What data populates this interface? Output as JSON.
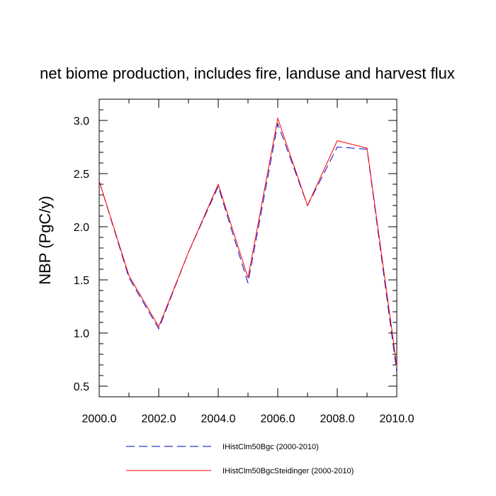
{
  "chart_data": {
    "type": "line",
    "title": "net biome production, includes fire, landuse and harvest flux",
    "xlabel": "",
    "ylabel": "NBP  (PgC/y)",
    "xlim": [
      2000,
      2010
    ],
    "ylim": [
      0.4,
      3.2
    ],
    "x_major_ticks": [
      2000,
      2002,
      2004,
      2006,
      2008,
      2010
    ],
    "x_tick_labels": [
      "2000.0",
      "2002.0",
      "2004.0",
      "2006.0",
      "2008.0",
      "2010.0"
    ],
    "y_major_ticks": [
      0.5,
      1.0,
      1.5,
      2.0,
      2.5,
      3.0
    ],
    "y_tick_labels": [
      "0.5",
      "1.0",
      "1.5",
      "2.0",
      "2.5",
      "3.0"
    ],
    "grid": false,
    "legend_position": "bottom",
    "x": [
      2000,
      2001,
      2002,
      2003,
      2004,
      2005,
      2006,
      2007,
      2008,
      2009,
      2010
    ],
    "series": [
      {
        "name": "IHistClm50Bgc (2000-2010)",
        "color": "#0000cc",
        "dash": "dashed",
        "values": [
          2.43,
          1.52,
          1.04,
          1.76,
          2.38,
          1.47,
          2.97,
          2.2,
          2.75,
          2.73,
          0.63
        ]
      },
      {
        "name": "IHistClm50BgcSteidinger (2000-2010)",
        "color": "#ff0000",
        "dash": "solid",
        "values": [
          2.43,
          1.54,
          1.06,
          1.76,
          2.4,
          1.52,
          3.02,
          2.2,
          2.81,
          2.74,
          0.69
        ]
      }
    ]
  }
}
